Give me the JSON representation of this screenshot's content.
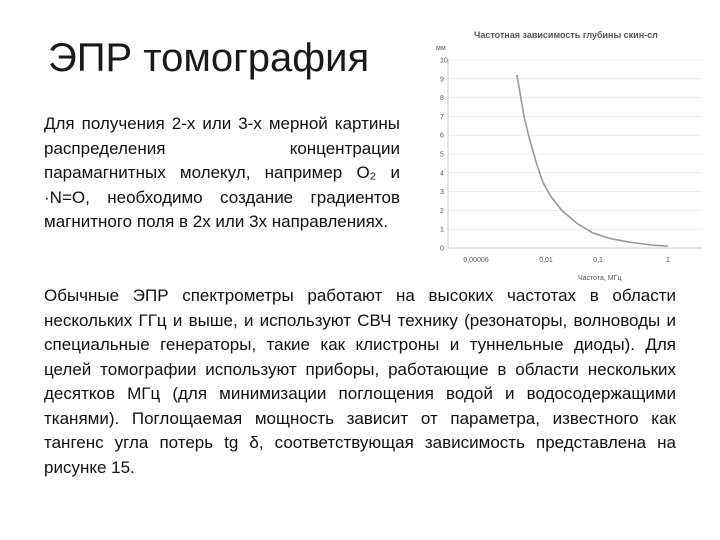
{
  "slide": {
    "title": "ЭПР томография",
    "para1": "Для получения 2-х или 3-х мерной картины распределения концентрации парамагнитных молекул, например O₂ и ·N=O, необходимо создание градиентов магнитного поля в 2х или 3х направлениях.",
    "para2": "Обычные ЭПР спектрометры работают на высоких частотах в области нескольких ГГц и выше, и используют СВЧ технику (резонаторы, волноводы и специальные генераторы, такие как клистроны и туннельные диоды). Для целей томографии используют приборы, работающие в области нескольких десятков МГц (для минимизации поглощения водой и водосодержащими тканями). Поглощаемая мощность зависит от параметра, известного как тангенс угла потерь  tg δ, соответствующая зависимость представлена на рисунке 15."
  },
  "chart_data": {
    "type": "line",
    "title": "Частотная зависимость глубины скин-сл",
    "ylabel": "мм",
    "xlabel": "Частота, МГц",
    "ylim": [
      0,
      10
    ],
    "y_ticks": [
      "0",
      "1",
      "2",
      "3",
      "4",
      "5",
      "6",
      "7",
      "8",
      "9",
      "10"
    ],
    "x_ticks": [
      "0,00006",
      "0,01",
      "0,1",
      "1"
    ],
    "series": [
      {
        "x": [
          0.0012,
          0.002,
          0.003,
          0.005,
          0.008,
          0.012,
          0.02,
          0.04,
          0.08,
          0.15,
          0.3,
          0.6,
          1.0
        ],
        "values": [
          9.2,
          7.0,
          5.8,
          4.5,
          3.5,
          2.8,
          2.0,
          1.3,
          0.8,
          0.5,
          0.3,
          0.15,
          0.1
        ]
      }
    ],
    "colors": {
      "line": "#9a9a9a",
      "grid": "#e3e3e3",
      "axis": "#bbbbbb"
    }
  }
}
